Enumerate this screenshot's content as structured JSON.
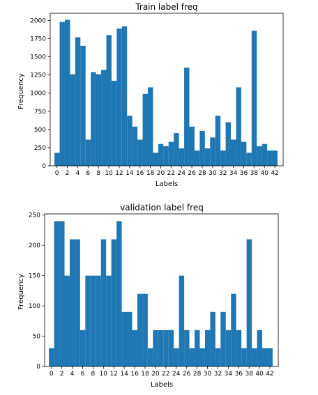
{
  "chart_data": [
    {
      "type": "bar",
      "title": "Train label freq",
      "xlabel": "Labels",
      "ylabel": "Frequency",
      "x_ticks": [
        0,
        2,
        4,
        6,
        8,
        10,
        12,
        14,
        16,
        18,
        20,
        22,
        24,
        26,
        28,
        30,
        32,
        34,
        36,
        38,
        40,
        42
      ],
      "y_ticks": [
        0,
        250,
        500,
        750,
        1000,
        1250,
        1500,
        1750,
        2000
      ],
      "ylim": [
        0,
        2100
      ],
      "xlim": [
        -1.3,
        43.6
      ],
      "bar_width": 0.96,
      "color": "#1f77b4",
      "categories": [
        0,
        1,
        2,
        3,
        4,
        5,
        6,
        7,
        8,
        9,
        10,
        11,
        12,
        13,
        14,
        15,
        16,
        17,
        18,
        19,
        20,
        21,
        22,
        23,
        24,
        25,
        26,
        27,
        28,
        29,
        30,
        31,
        32,
        33,
        34,
        35,
        36,
        37,
        38,
        39,
        40,
        41,
        42
      ],
      "values": [
        180,
        1980,
        2010,
        1260,
        1770,
        1650,
        360,
        1290,
        1260,
        1320,
        1800,
        1170,
        1890,
        1920,
        690,
        540,
        360,
        990,
        1080,
        180,
        300,
        270,
        330,
        450,
        240,
        1350,
        540,
        210,
        480,
        240,
        390,
        690,
        210,
        600,
        360,
        1080,
        330,
        180,
        1860,
        270,
        300,
        210,
        210
      ]
    },
    {
      "type": "bar",
      "title": "validation label freq",
      "xlabel": "Labels",
      "ylabel": "Frequency",
      "x_ticks": [
        0,
        2,
        4,
        6,
        8,
        10,
        12,
        14,
        16,
        18,
        20,
        22,
        24,
        26,
        28,
        30,
        32,
        34,
        36,
        38,
        40,
        42
      ],
      "y_ticks": [
        0,
        50,
        100,
        150,
        200,
        250
      ],
      "ylim": [
        0,
        252
      ],
      "xlim": [
        -1.3,
        43.6
      ],
      "bar_width": 0.96,
      "color": "#1f77b4",
      "categories": [
        0,
        1,
        2,
        3,
        4,
        5,
        6,
        7,
        8,
        9,
        10,
        11,
        12,
        13,
        14,
        15,
        16,
        17,
        18,
        19,
        20,
        21,
        22,
        23,
        24,
        25,
        26,
        27,
        28,
        29,
        30,
        31,
        32,
        33,
        34,
        35,
        36,
        37,
        38,
        39,
        40,
        41,
        42
      ],
      "values": [
        30,
        240,
        240,
        150,
        210,
        210,
        60,
        150,
        150,
        150,
        210,
        150,
        210,
        240,
        90,
        90,
        60,
        120,
        120,
        30,
        60,
        60,
        60,
        60,
        30,
        150,
        60,
        30,
        60,
        30,
        60,
        90,
        30,
        90,
        60,
        120,
        60,
        30,
        210,
        30,
        60,
        30,
        30
      ]
    }
  ]
}
